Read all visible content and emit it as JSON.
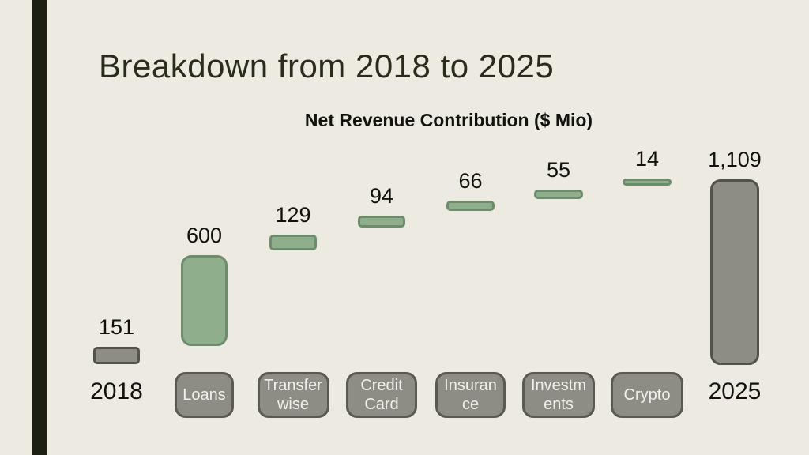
{
  "slide": {
    "title": "Breakdown from 2018 to 2025"
  },
  "chart_data": {
    "type": "bar",
    "subtype": "waterfall",
    "title": "Net Revenue Contribution ($ Mio)",
    "unit": "$ Mio",
    "categories": [
      "2018",
      "Loans",
      "Transferwise",
      "Credit Card",
      "Insurance",
      "Investments",
      "Crypto",
      "2025"
    ],
    "values": [
      151,
      600,
      129,
      94,
      66,
      55,
      14,
      1109
    ],
    "value_labels": [
      "151",
      "600",
      "129",
      "94",
      "66",
      "55",
      "14",
      "1,109"
    ],
    "bar_roles": [
      "total",
      "increase",
      "increase",
      "increase",
      "increase",
      "increase",
      "increase",
      "total"
    ],
    "category_boxed": [
      false,
      true,
      true,
      true,
      true,
      true,
      true,
      false
    ],
    "category_lines": [
      [
        "2018"
      ],
      [
        "Loans"
      ],
      [
        "Transfer",
        "wise"
      ],
      [
        "Credit",
        "Card"
      ],
      [
        "Insuran",
        "ce"
      ],
      [
        "Investm",
        "ents"
      ],
      [
        "Crypto"
      ],
      [
        "2025"
      ]
    ],
    "legend": "none",
    "grid": false,
    "colors": {
      "increase_fill": "#8FAE8C",
      "increase_stroke": "#6D8C6B",
      "total_fill": "#8D8D86",
      "total_stroke": "#52524B",
      "background": "#ECEAE1",
      "accent_stripe": "#1D1F12",
      "text": "#12120C",
      "box_text": "#F2F0E9"
    }
  }
}
